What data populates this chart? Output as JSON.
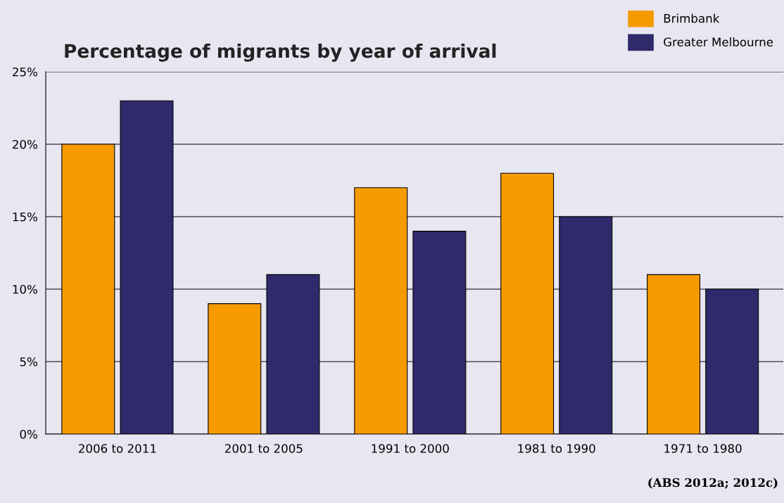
{
  "chart_data": {
    "type": "bar",
    "title": "Percentage of migrants by year of arrival",
    "categories": [
      "2006 to 2011",
      "2001 to 2005",
      "1991 to 2000",
      "1981 to 1990",
      "1971 to 1980"
    ],
    "series": [
      {
        "name": "Brimbank",
        "color": "#f59b00",
        "values": [
          20,
          9,
          17,
          18,
          11
        ]
      },
      {
        "name": "Greater Melbourne",
        "color": "#2e2a6b",
        "values": [
          23,
          11,
          14,
          15,
          10
        ]
      }
    ],
    "ylim": [
      0,
      25
    ],
    "yticks": [
      {
        "value": 0,
        "label": "0%"
      },
      {
        "value": 5,
        "label": "5%"
      },
      {
        "value": 10,
        "label": "10%"
      },
      {
        "value": 15,
        "label": "15%"
      },
      {
        "value": 20,
        "label": "20%"
      },
      {
        "value": 25,
        "label": "25%"
      }
    ],
    "grid": "y",
    "legend": "top right",
    "annotations": [
      "(ABS 2012a; 2012c)"
    ]
  }
}
